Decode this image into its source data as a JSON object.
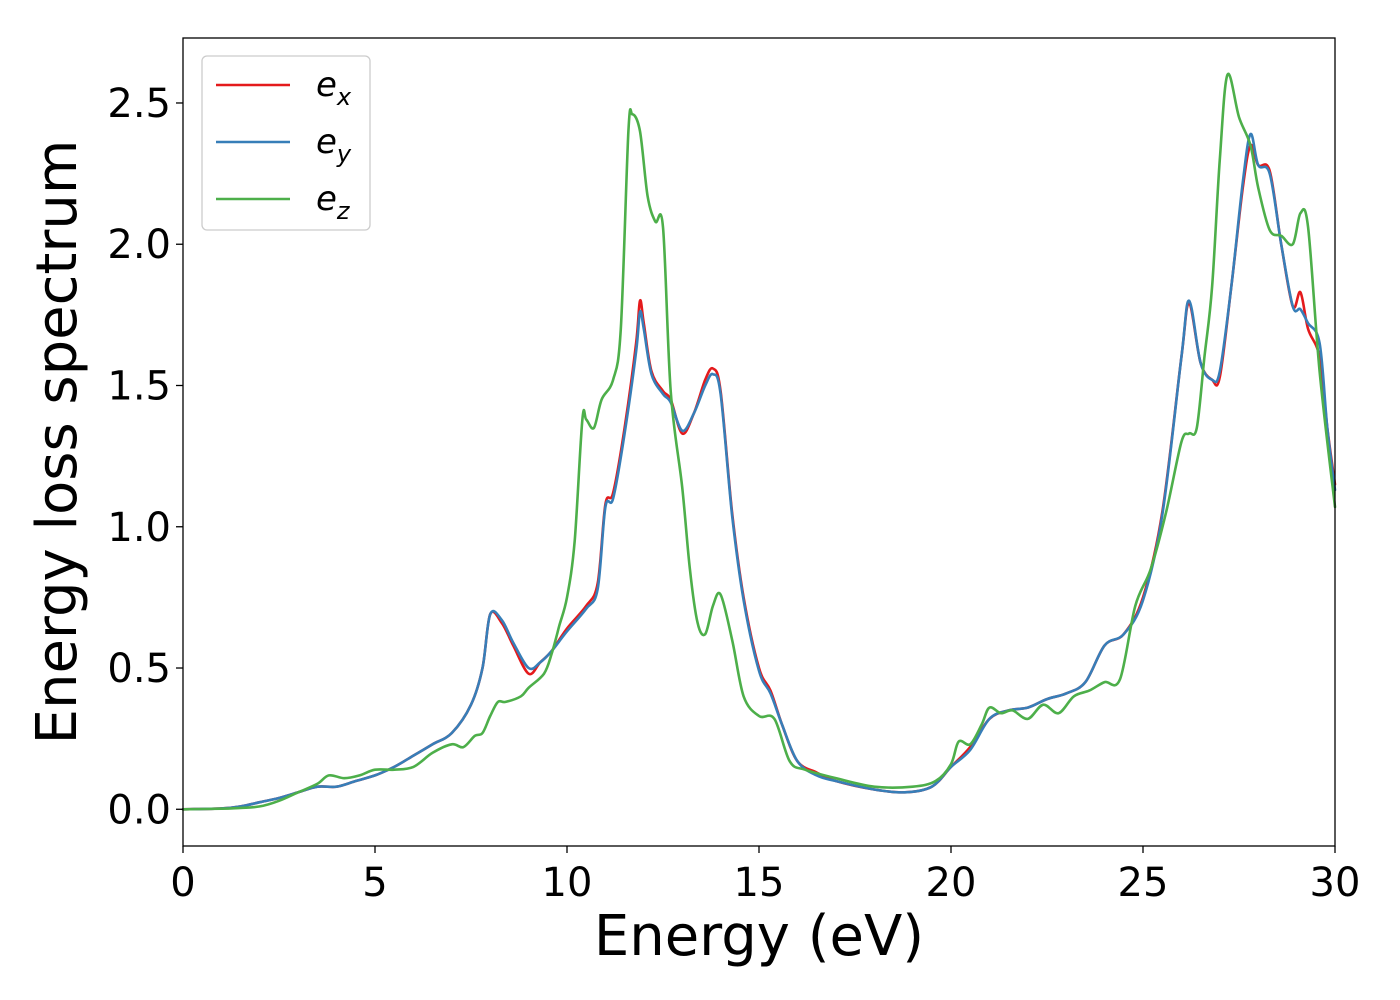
{
  "chart_data": {
    "type": "line",
    "xlabel": "Energy (eV)",
    "ylabel": "Energy loss spectrum",
    "xlim": [
      0,
      30
    ],
    "ylim": [
      -0.13,
      2.73
    ],
    "x_ticks": [
      "0",
      "5",
      "10",
      "15",
      "20",
      "25",
      "30"
    ],
    "y_ticks": [
      "0.0",
      "0.5",
      "1.0",
      "1.5",
      "2.0",
      "2.5"
    ],
    "grid": false,
    "legend_position": "upper-left",
    "series": [
      {
        "name": "e_x",
        "legend_base": "e",
        "legend_sub": "x",
        "color": "#e41a1c",
        "x": [
          0,
          1,
          1.5,
          2,
          2.5,
          3,
          3.5,
          4,
          4.5,
          5,
          5.5,
          6,
          6.5,
          7,
          7.5,
          7.8,
          8.0,
          8.3,
          8.6,
          9.0,
          9.3,
          9.6,
          10.0,
          10.5,
          10.8,
          11.0,
          11.2,
          11.5,
          11.8,
          11.9,
          12.0,
          12.2,
          12.5,
          12.7,
          13.0,
          13.3,
          13.6,
          13.8,
          14.0,
          14.3,
          14.6,
          15.0,
          15.3,
          15.6,
          16.0,
          16.5,
          17.0,
          18.0,
          18.8,
          19.5,
          20.0,
          20.5,
          21.0,
          21.5,
          22.0,
          22.5,
          23.0,
          23.5,
          24.0,
          24.5,
          25.0,
          25.5,
          26.0,
          26.2,
          26.5,
          26.8,
          27.0,
          27.3,
          27.6,
          27.8,
          28.0,
          28.3,
          28.6,
          28.9,
          29.1,
          29.3,
          29.6,
          29.8,
          30.0
        ],
        "y": [
          0,
          0.003,
          0.01,
          0.025,
          0.04,
          0.06,
          0.08,
          0.08,
          0.1,
          0.12,
          0.15,
          0.19,
          0.23,
          0.27,
          0.37,
          0.5,
          0.69,
          0.66,
          0.58,
          0.48,
          0.52,
          0.56,
          0.64,
          0.72,
          0.8,
          1.08,
          1.12,
          1.35,
          1.65,
          1.8,
          1.72,
          1.55,
          1.48,
          1.45,
          1.33,
          1.4,
          1.52,
          1.56,
          1.48,
          1.05,
          0.75,
          0.5,
          0.42,
          0.3,
          0.17,
          0.13,
          0.1,
          0.07,
          0.06,
          0.08,
          0.15,
          0.22,
          0.32,
          0.35,
          0.36,
          0.39,
          0.41,
          0.45,
          0.58,
          0.62,
          0.75,
          1.05,
          1.6,
          1.79,
          1.58,
          1.52,
          1.53,
          1.85,
          2.2,
          2.35,
          2.28,
          2.26,
          2.0,
          1.78,
          1.83,
          1.7,
          1.6,
          1.35,
          1.15
        ]
      },
      {
        "name": "e_y",
        "legend_base": "e",
        "legend_sub": "y",
        "color": "#377eb8",
        "x": [
          0,
          1,
          1.5,
          2,
          2.5,
          3,
          3.5,
          4,
          4.5,
          5,
          5.5,
          6,
          6.5,
          7,
          7.5,
          7.8,
          8.0,
          8.3,
          8.6,
          9.0,
          9.3,
          9.6,
          10.0,
          10.5,
          10.8,
          11.0,
          11.2,
          11.5,
          11.8,
          11.9,
          12.0,
          12.2,
          12.5,
          12.7,
          13.0,
          13.3,
          13.6,
          13.8,
          14.0,
          14.3,
          14.6,
          15.0,
          15.3,
          15.6,
          16.0,
          16.5,
          17.0,
          18.0,
          18.8,
          19.5,
          20.0,
          20.5,
          21.0,
          21.5,
          22.0,
          22.5,
          23.0,
          23.5,
          24.0,
          24.5,
          25.0,
          25.5,
          26.0,
          26.2,
          26.5,
          26.8,
          27.0,
          27.3,
          27.6,
          27.8,
          28.0,
          28.3,
          28.6,
          28.9,
          29.1,
          29.3,
          29.6,
          29.8,
          30.0
        ],
        "y": [
          0,
          0.003,
          0.01,
          0.025,
          0.04,
          0.06,
          0.08,
          0.08,
          0.1,
          0.12,
          0.15,
          0.19,
          0.23,
          0.27,
          0.37,
          0.5,
          0.69,
          0.67,
          0.59,
          0.5,
          0.52,
          0.56,
          0.63,
          0.71,
          0.78,
          1.07,
          1.1,
          1.33,
          1.62,
          1.76,
          1.7,
          1.54,
          1.47,
          1.44,
          1.34,
          1.4,
          1.5,
          1.54,
          1.47,
          1.04,
          0.74,
          0.49,
          0.41,
          0.3,
          0.17,
          0.12,
          0.1,
          0.07,
          0.06,
          0.08,
          0.15,
          0.21,
          0.32,
          0.35,
          0.36,
          0.39,
          0.41,
          0.45,
          0.58,
          0.62,
          0.74,
          1.04,
          1.6,
          1.8,
          1.58,
          1.52,
          1.55,
          1.85,
          2.22,
          2.39,
          2.28,
          2.25,
          2.0,
          1.78,
          1.77,
          1.72,
          1.65,
          1.35,
          1.13
        ]
      },
      {
        "name": "e_z",
        "legend_base": "e",
        "legend_sub": "z",
        "color": "#4daf4a",
        "x": [
          0,
          1,
          1.5,
          2,
          2.5,
          3,
          3.5,
          3.8,
          4.2,
          4.6,
          5,
          5.5,
          6,
          6.5,
          7,
          7.3,
          7.6,
          7.8,
          8.0,
          8.2,
          8.4,
          8.8,
          9.0,
          9.4,
          9.6,
          9.8,
          10.0,
          10.2,
          10.4,
          10.5,
          10.7,
          10.9,
          11.2,
          11.4,
          11.6,
          11.7,
          11.9,
          12.1,
          12.3,
          12.5,
          12.7,
          13.0,
          13.2,
          13.4,
          13.6,
          13.8,
          14.0,
          14.3,
          14.6,
          15.0,
          15.4,
          15.8,
          16.2,
          17.0,
          18.0,
          19.0,
          19.6,
          20.0,
          20.2,
          20.5,
          20.8,
          21.0,
          21.3,
          21.6,
          22.0,
          22.4,
          22.8,
          23.2,
          23.6,
          24.0,
          24.4,
          24.8,
          25.2,
          25.6,
          26.0,
          26.2,
          26.4,
          26.6,
          26.8,
          27.0,
          27.2,
          27.5,
          27.8,
          28.0,
          28.3,
          28.6,
          28.9,
          29.1,
          29.3,
          29.6,
          30.0
        ],
        "y": [
          0,
          0.002,
          0.005,
          0.01,
          0.03,
          0.06,
          0.09,
          0.12,
          0.11,
          0.12,
          0.14,
          0.14,
          0.15,
          0.2,
          0.23,
          0.22,
          0.26,
          0.27,
          0.33,
          0.38,
          0.38,
          0.4,
          0.43,
          0.48,
          0.55,
          0.65,
          0.75,
          0.95,
          1.38,
          1.38,
          1.35,
          1.45,
          1.52,
          1.7,
          2.4,
          2.46,
          2.4,
          2.17,
          2.08,
          2.06,
          1.48,
          1.14,
          0.85,
          0.66,
          0.62,
          0.72,
          0.76,
          0.6,
          0.4,
          0.33,
          0.32,
          0.17,
          0.14,
          0.11,
          0.08,
          0.08,
          0.1,
          0.16,
          0.24,
          0.23,
          0.3,
          0.36,
          0.34,
          0.35,
          0.32,
          0.37,
          0.34,
          0.4,
          0.42,
          0.45,
          0.46,
          0.72,
          0.85,
          1.05,
          1.3,
          1.33,
          1.35,
          1.6,
          1.85,
          2.3,
          2.6,
          2.45,
          2.35,
          2.2,
          2.05,
          2.03,
          2.0,
          2.11,
          2.06,
          1.55,
          1.07
        ]
      }
    ]
  }
}
